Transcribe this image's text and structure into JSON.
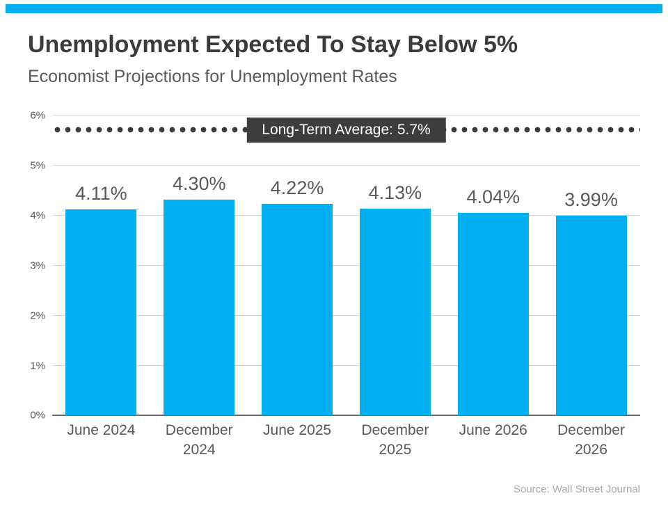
{
  "header": {
    "title": "Unemployment Expected To Stay Below 5%",
    "subtitle": "Economist Projections for Unemployment Rates"
  },
  "footer": {
    "source": "Source: Wall Street Journal"
  },
  "chart_data": {
    "type": "bar",
    "title": "Unemployment Expected To Stay Below 5%",
    "subtitle": "Economist Projections for Unemployment Rates",
    "categories": [
      "June 2024",
      "December 2024",
      "June 2025",
      "December 2025",
      "June 2026",
      "December 2026"
    ],
    "values": [
      4.11,
      4.3,
      4.22,
      4.13,
      4.04,
      3.99
    ],
    "value_labels": [
      "4.11%",
      "4.30%",
      "4.22%",
      "4.13%",
      "4.04%",
      "3.99%"
    ],
    "xlabel": "",
    "ylabel": "",
    "ylim": [
      0,
      6
    ],
    "y_ticks": [
      "0%",
      "1%",
      "2%",
      "3%",
      "4%",
      "5%",
      "6%"
    ],
    "grid": true,
    "legend": false,
    "reference_line": {
      "value": 5.7,
      "label": "Long-Term Average: 5.7%",
      "style": "dotted"
    },
    "colors": {
      "bar": "#00B0F0",
      "accent_stripe": "#00B0F0",
      "reference": "#3d3d3d",
      "reference_label_bg": "#3d3d3d",
      "reference_label_text": "#ffffff",
      "title_text": "#3b3b3b",
      "axis_text": "#595959",
      "gridline": "#d9d9d9",
      "axis_line": "#6f6f6f",
      "source_text": "#a9a9a9"
    }
  }
}
